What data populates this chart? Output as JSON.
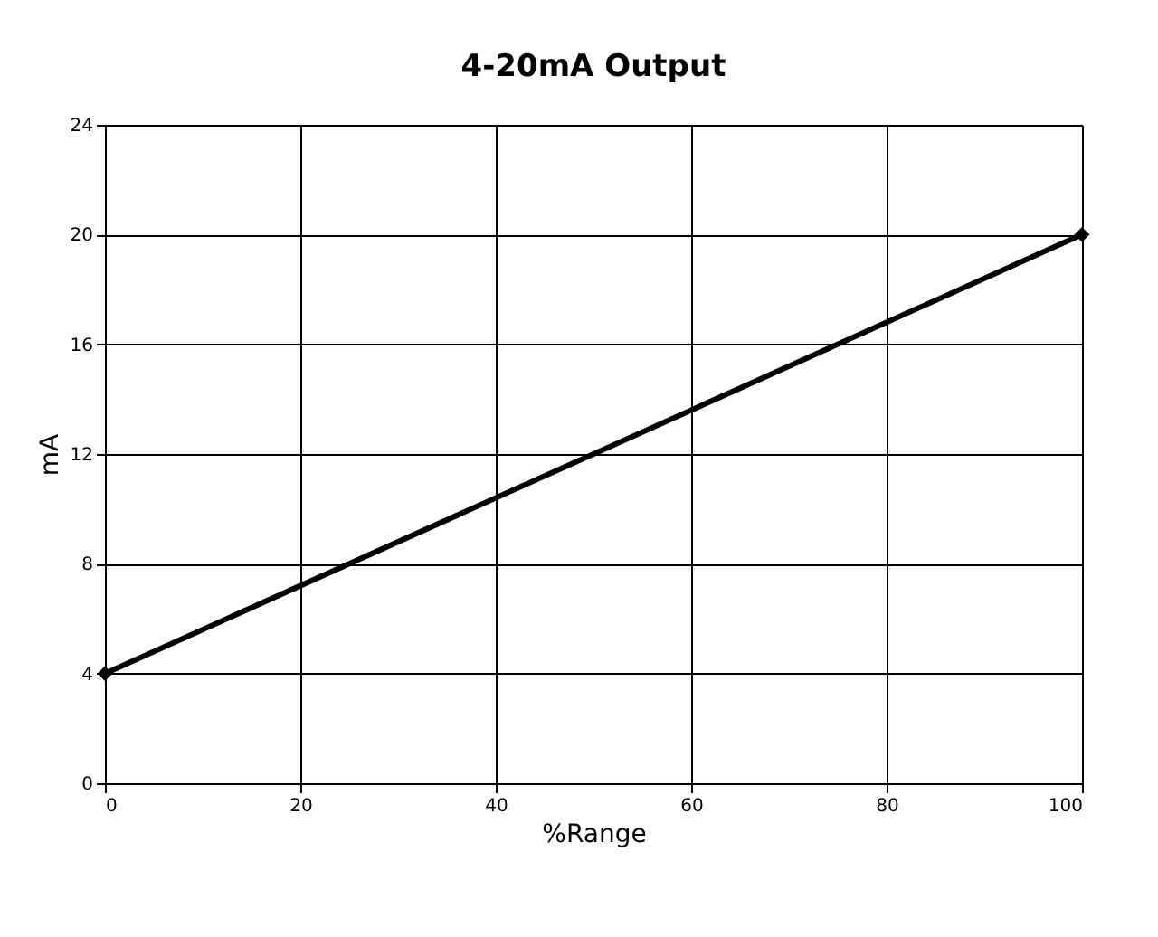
{
  "chart_data": {
    "type": "line",
    "title": "4-20mA Output",
    "xlabel": "%Range",
    "ylabel": "mA",
    "x": [
      0,
      100
    ],
    "series": [
      {
        "color": "#000000",
        "values": [
          4,
          20
        ]
      }
    ],
    "xlim": [
      0,
      100
    ],
    "xticks": [
      0,
      20,
      40,
      60,
      80,
      100
    ],
    "ylim": [
      0,
      24
    ],
    "yticks": [
      0,
      4,
      8,
      12,
      16,
      20,
      24
    ],
    "grid": true,
    "marker": "diamond",
    "line_style": "solid"
  }
}
